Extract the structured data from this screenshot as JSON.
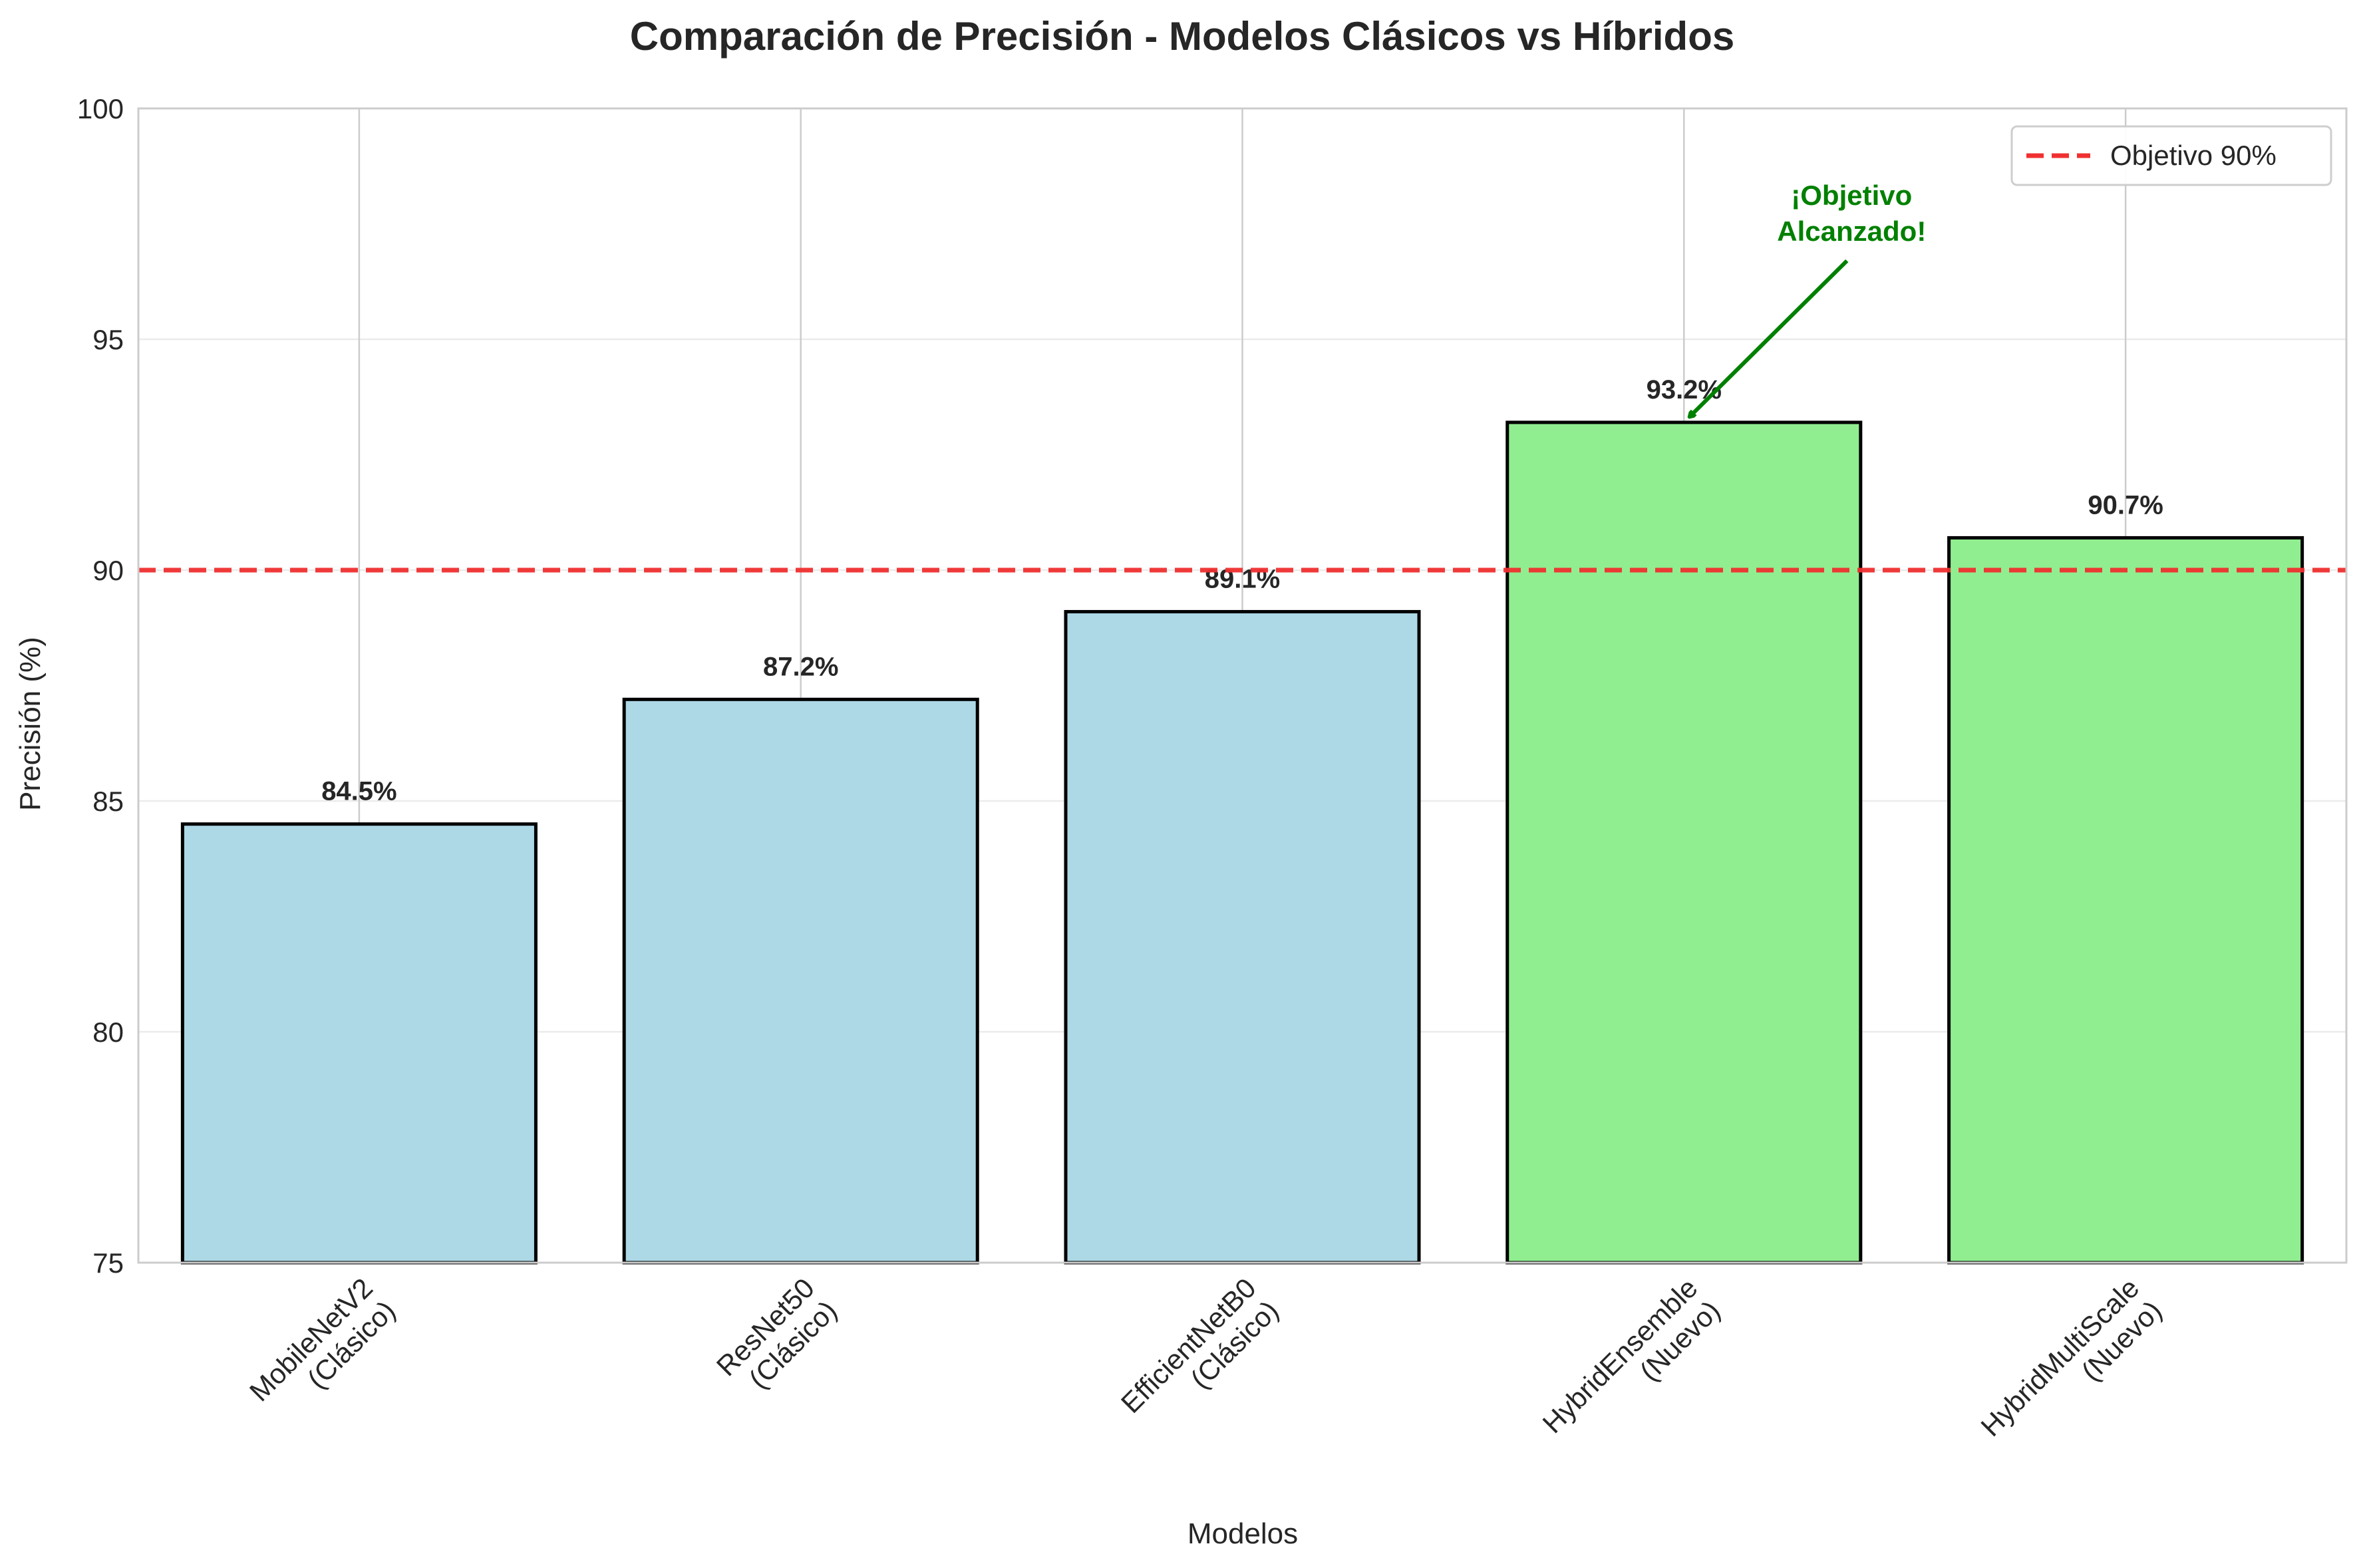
{
  "chart_data": {
    "type": "bar",
    "title": "Comparación de Precisión - Modelos Clásicos vs Híbridos",
    "xlabel": "Modelos",
    "ylabel": "Precisión (%)",
    "ylim": [
      75,
      100
    ],
    "yticks": [
      75,
      80,
      85,
      90,
      95,
      100
    ],
    "grid": true,
    "categories": [
      [
        "MobileNetV2",
        "(Clásico)"
      ],
      [
        "ResNet50",
        "(Clásico)"
      ],
      [
        "EfficientNetB0",
        "(Clásico)"
      ],
      [
        "HybridEnsemble",
        "(Nuevo)"
      ],
      [
        "HybridMultiScale",
        "(Nuevo)"
      ]
    ],
    "values": [
      84.5,
      87.2,
      89.1,
      93.2,
      90.7
    ],
    "value_labels": [
      "84.5%",
      "87.2%",
      "89.1%",
      "93.2%",
      "90.7%"
    ],
    "bar_colors": [
      "#add8e6",
      "#add8e6",
      "#add8e6",
      "#90ee90",
      "#90ee90"
    ],
    "reference_line": {
      "value": 90,
      "label": "Objetivo 90%",
      "color": "#f03030"
    },
    "legend": {
      "position": "top-right",
      "entries": [
        "Objetivo 90%"
      ]
    },
    "annotation": {
      "lines": [
        "¡Objetivo",
        "Alcanzado!"
      ],
      "target_index": 3,
      "color": "#008000"
    }
  }
}
